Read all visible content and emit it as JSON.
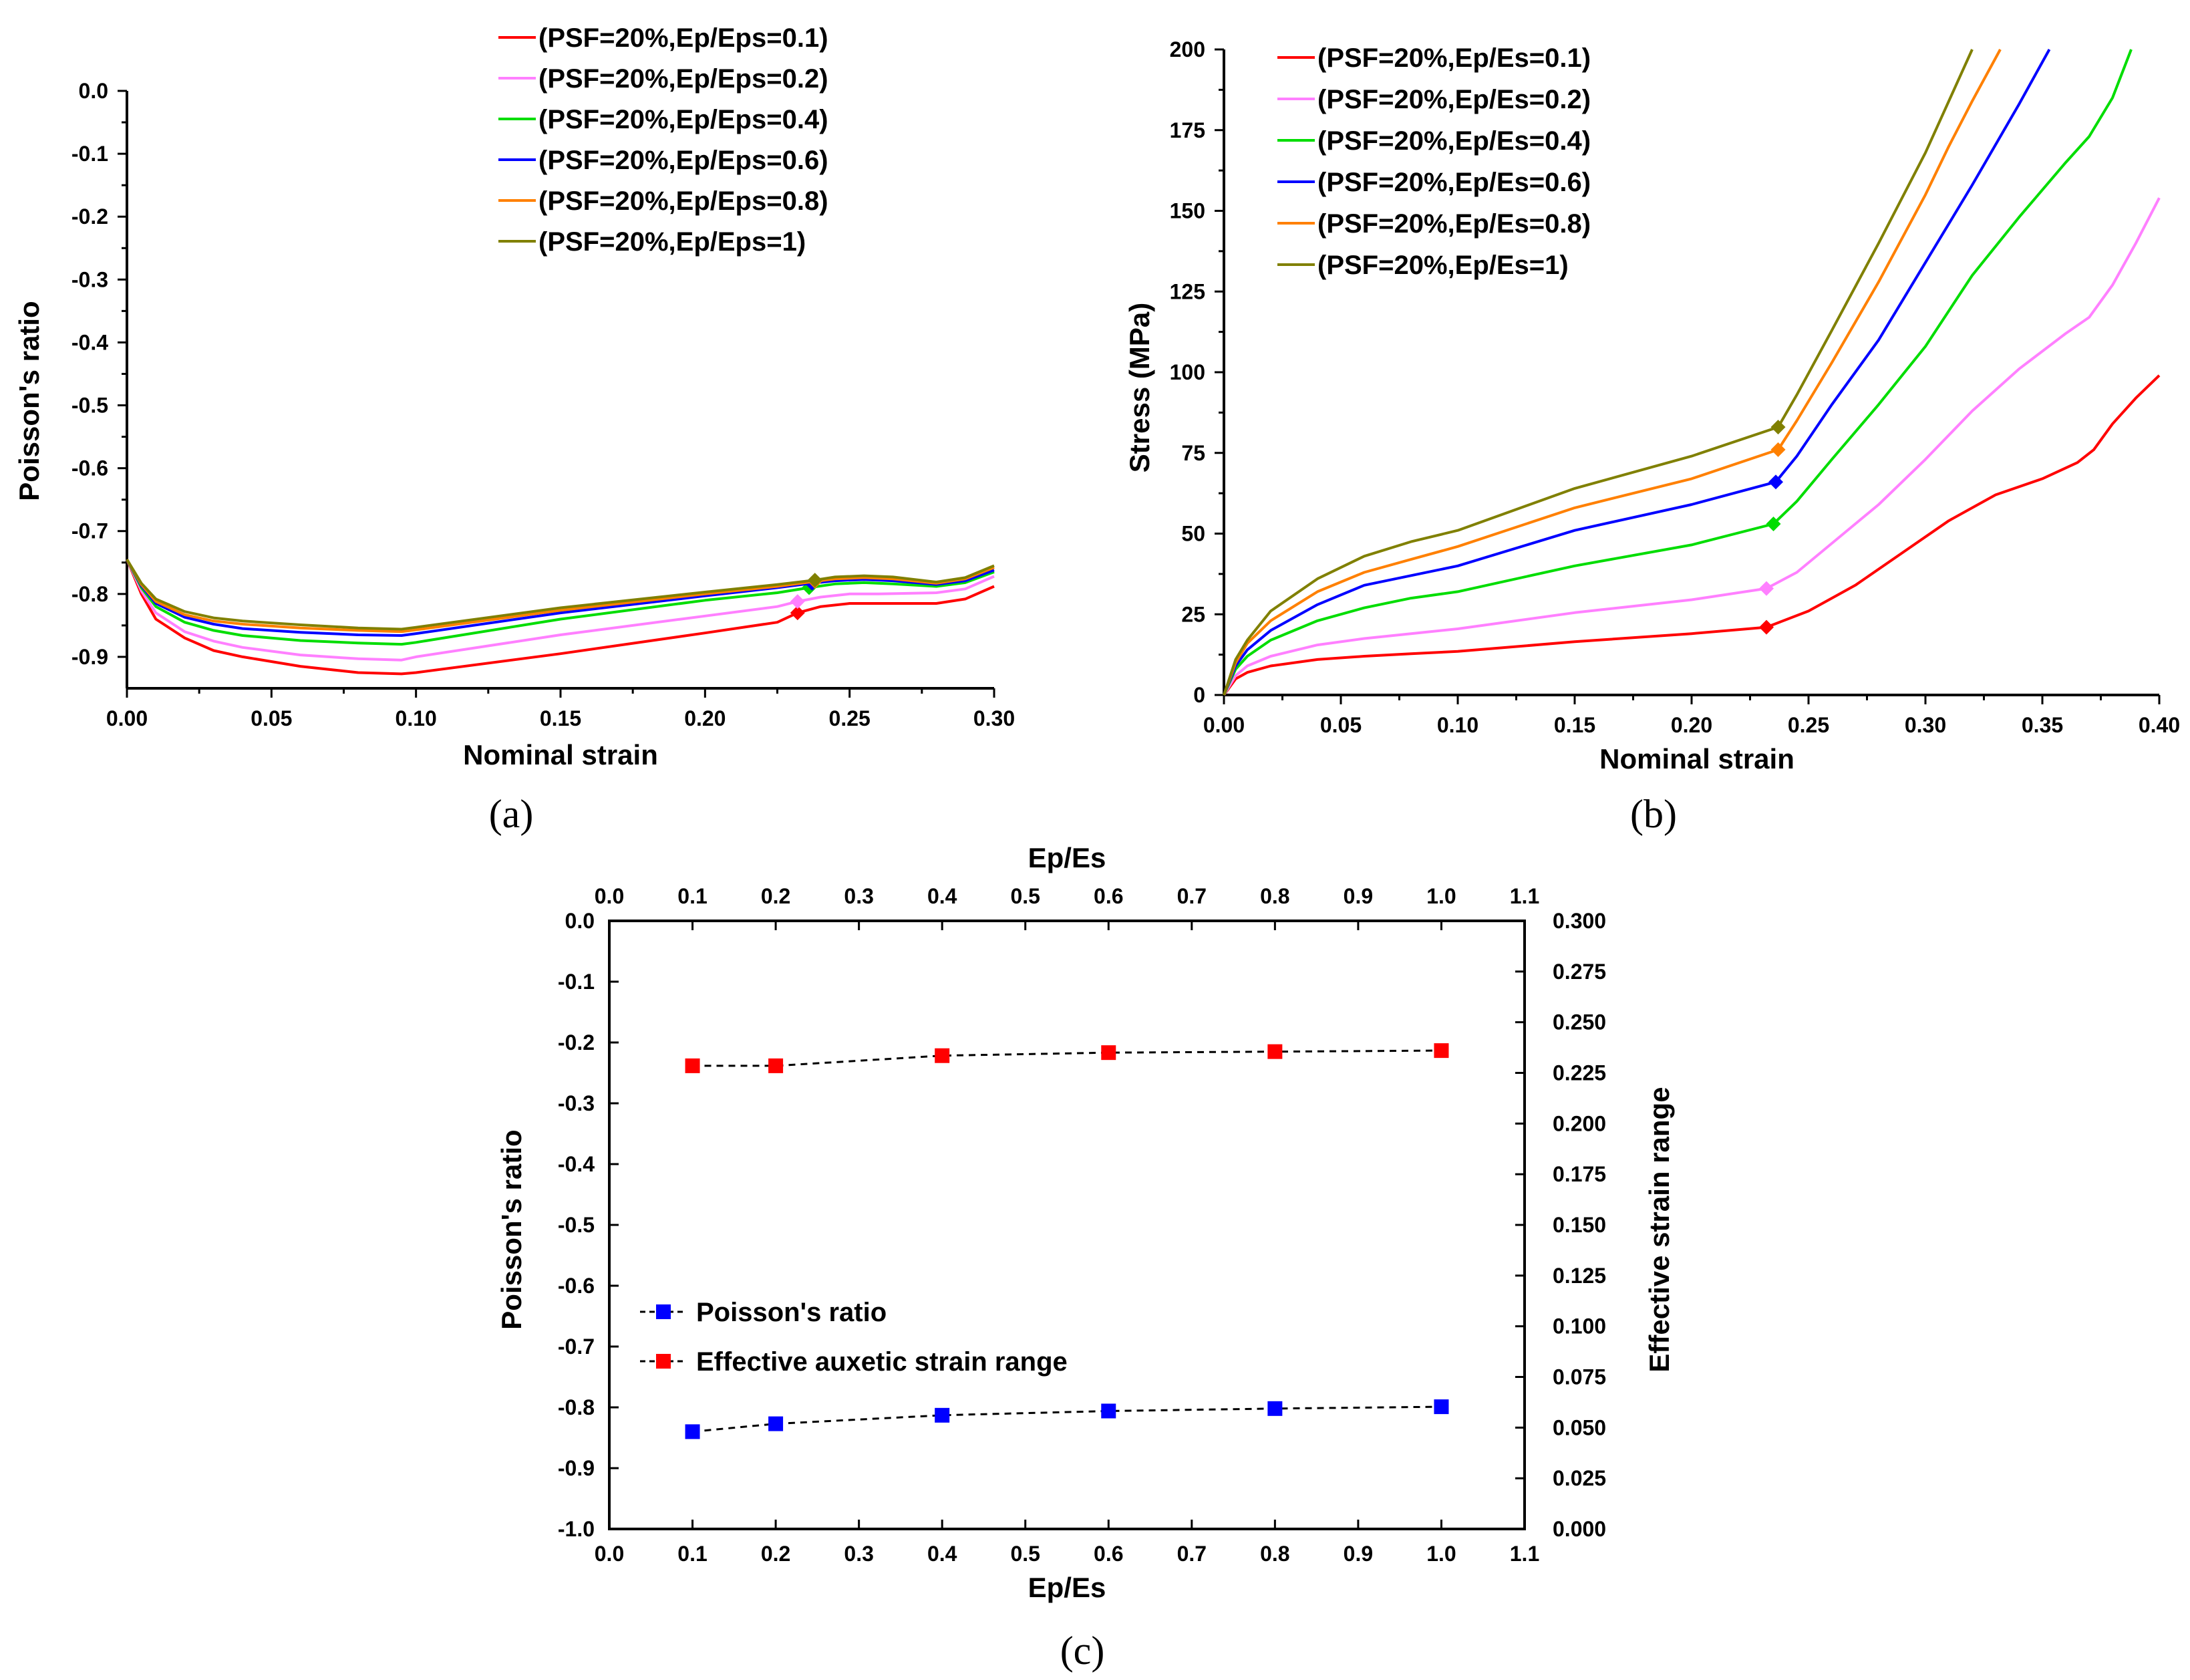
{
  "colors": [
    "#ff0000",
    "#ff80ff",
    "#00dd00",
    "#0000ff",
    "#ff8000",
    "#808000"
  ],
  "chart_data": [
    {
      "panel": "(a)",
      "type": "line",
      "xlabel": "Nominal strain",
      "ylabel": "Poisson's ratio",
      "xlim": [
        0.0,
        0.3
      ],
      "ylim": [
        -0.95,
        0.0
      ],
      "xticks": [
        "0.00",
        "0.05",
        "0.10",
        "0.15",
        "0.20",
        "0.25",
        "0.30"
      ],
      "yticks": [
        "0.0",
        "-0.1",
        "-0.2",
        "-0.3",
        "-0.4",
        "-0.5",
        "-0.6",
        "-0.7",
        "-0.8",
        "-0.9"
      ],
      "legend": "top-right",
      "series": [
        {
          "name": "(PSF=20%,Ep/Eps=0.1)",
          "x": [
            0,
            0.005,
            0.01,
            0.02,
            0.03,
            0.04,
            0.06,
            0.08,
            0.095,
            0.1,
            0.15,
            0.2,
            0.225,
            0.232,
            0.24,
            0.25,
            0.26,
            0.28,
            0.29,
            0.3
          ],
          "y": [
            -0.745,
            -0.8,
            -0.84,
            -0.87,
            -0.89,
            -0.9,
            -0.915,
            -0.925,
            -0.927,
            -0.925,
            -0.895,
            -0.862,
            -0.845,
            -0.83,
            -0.82,
            -0.815,
            -0.815,
            -0.815,
            -0.808,
            -0.788
          ],
          "marker": [
            0.232,
            -0.83
          ]
        },
        {
          "name": "(PSF=20%,Ep/Eps=0.2)",
          "x": [
            0,
            0.005,
            0.01,
            0.02,
            0.03,
            0.04,
            0.06,
            0.08,
            0.095,
            0.1,
            0.15,
            0.2,
            0.225,
            0.232,
            0.24,
            0.25,
            0.26,
            0.28,
            0.29,
            0.3
          ],
          "y": [
            -0.745,
            -0.795,
            -0.83,
            -0.86,
            -0.875,
            -0.885,
            -0.897,
            -0.903,
            -0.905,
            -0.9,
            -0.865,
            -0.835,
            -0.82,
            -0.812,
            -0.805,
            -0.8,
            -0.8,
            -0.798,
            -0.792,
            -0.772
          ],
          "marker": [
            0.232,
            -0.812
          ]
        },
        {
          "name": "(PSF=20%,Ep/Eps=0.4)",
          "x": [
            0,
            0.005,
            0.01,
            0.02,
            0.03,
            0.04,
            0.06,
            0.08,
            0.095,
            0.1,
            0.15,
            0.2,
            0.225,
            0.236,
            0.245,
            0.255,
            0.265,
            0.28,
            0.29,
            0.3
          ],
          "y": [
            -0.745,
            -0.79,
            -0.82,
            -0.845,
            -0.858,
            -0.866,
            -0.874,
            -0.878,
            -0.88,
            -0.877,
            -0.84,
            -0.81,
            -0.798,
            -0.79,
            -0.784,
            -0.782,
            -0.784,
            -0.788,
            -0.782,
            -0.765
          ],
          "marker": [
            0.236,
            -0.79
          ]
        },
        {
          "name": "(PSF=20%,Ep/Eps=0.6)",
          "x": [
            0,
            0.005,
            0.01,
            0.02,
            0.03,
            0.04,
            0.06,
            0.08,
            0.095,
            0.1,
            0.15,
            0.2,
            0.225,
            0.237,
            0.245,
            0.255,
            0.265,
            0.28,
            0.29,
            0.3
          ],
          "y": [
            -0.745,
            -0.787,
            -0.815,
            -0.837,
            -0.848,
            -0.855,
            -0.861,
            -0.865,
            -0.866,
            -0.863,
            -0.83,
            -0.803,
            -0.79,
            -0.783,
            -0.779,
            -0.777,
            -0.779,
            -0.785,
            -0.779,
            -0.762
          ],
          "marker": [
            0.237,
            -0.783
          ]
        },
        {
          "name": "(PSF=20%,Ep/Eps=0.8)",
          "x": [
            0,
            0.005,
            0.01,
            0.02,
            0.03,
            0.04,
            0.06,
            0.08,
            0.095,
            0.1,
            0.15,
            0.2,
            0.225,
            0.238,
            0.245,
            0.255,
            0.265,
            0.28,
            0.29,
            0.3
          ],
          "y": [
            -0.745,
            -0.785,
            -0.812,
            -0.833,
            -0.843,
            -0.848,
            -0.854,
            -0.858,
            -0.86,
            -0.857,
            -0.826,
            -0.8,
            -0.788,
            -0.78,
            -0.776,
            -0.774,
            -0.776,
            -0.783,
            -0.776,
            -0.758
          ],
          "marker": [
            0.238,
            -0.78
          ]
        },
        {
          "name": "(PSF=20%,Ep/Eps=1)",
          "x": [
            0,
            0.005,
            0.01,
            0.02,
            0.03,
            0.04,
            0.06,
            0.08,
            0.095,
            0.1,
            0.15,
            0.2,
            0.225,
            0.238,
            0.245,
            0.255,
            0.265,
            0.28,
            0.29,
            0.3
          ],
          "y": [
            -0.745,
            -0.783,
            -0.808,
            -0.828,
            -0.838,
            -0.843,
            -0.849,
            -0.854,
            -0.856,
            -0.853,
            -0.822,
            -0.797,
            -0.785,
            -0.778,
            -0.773,
            -0.771,
            -0.773,
            -0.781,
            -0.774,
            -0.755
          ],
          "marker": [
            0.238,
            -0.778
          ]
        }
      ]
    },
    {
      "panel": "(b)",
      "type": "line",
      "xlabel": "Nominal strain",
      "ylabel": "Stress (MPa)",
      "xlim": [
        0.0,
        0.4
      ],
      "ylim": [
        0,
        200
      ],
      "xticks": [
        "0.00",
        "0.05",
        "0.10",
        "0.15",
        "0.20",
        "0.25",
        "0.30",
        "0.35",
        "0.40"
      ],
      "yticks": [
        "0",
        "25",
        "50",
        "75",
        "100",
        "125",
        "150",
        "175",
        "200"
      ],
      "legend": "top-left",
      "series": [
        {
          "name": "(PSF=20%,Ep/Es=0.1)",
          "x": [
            0,
            0.005,
            0.01,
            0.02,
            0.04,
            0.06,
            0.08,
            0.1,
            0.15,
            0.2,
            0.232,
            0.25,
            0.27,
            0.29,
            0.31,
            0.33,
            0.35,
            0.365,
            0.372,
            0.38,
            0.39,
            0.4
          ],
          "y": [
            0,
            5,
            7,
            9,
            11,
            12,
            12.8,
            13.5,
            16.5,
            19,
            21,
            26,
            34,
            44,
            54,
            62,
            67,
            72,
            76,
            84,
            92,
            99
          ],
          "marker": [
            0.232,
            21
          ]
        },
        {
          "name": "(PSF=20%,Ep/Es=0.2)",
          "x": [
            0,
            0.005,
            0.01,
            0.02,
            0.04,
            0.06,
            0.08,
            0.1,
            0.15,
            0.2,
            0.232,
            0.245,
            0.26,
            0.28,
            0.3,
            0.32,
            0.34,
            0.36,
            0.37,
            0.38,
            0.39,
            0.4
          ],
          "y": [
            0,
            6,
            9,
            12,
            15.5,
            17.5,
            19,
            20.5,
            25.5,
            29.5,
            33,
            38,
            47,
            59,
            73,
            88,
            101,
            112,
            117,
            127,
            140,
            154
          ],
          "marker": [
            0.232,
            33
          ]
        },
        {
          "name": "(PSF=20%,Ep/Es=0.4)",
          "x": [
            0,
            0.005,
            0.01,
            0.02,
            0.04,
            0.06,
            0.08,
            0.1,
            0.15,
            0.2,
            0.235,
            0.245,
            0.26,
            0.28,
            0.3,
            0.32,
            0.34,
            0.36,
            0.37,
            0.38,
            0.388
          ],
          "y": [
            0,
            8,
            12,
            17,
            23,
            27,
            30,
            32,
            40,
            46.5,
            53,
            60,
            73,
            90,
            108,
            130,
            148,
            165,
            173,
            185,
            200
          ],
          "marker": [
            0.235,
            53
          ]
        },
        {
          "name": "(PSF=20%,Ep/Es=0.6)",
          "x": [
            0,
            0.005,
            0.01,
            0.02,
            0.04,
            0.06,
            0.08,
            0.1,
            0.15,
            0.2,
            0.236,
            0.245,
            0.26,
            0.28,
            0.3,
            0.32,
            0.34,
            0.353
          ],
          "y": [
            0,
            9,
            14,
            20,
            28,
            34,
            37,
            40,
            51,
            59,
            66,
            74,
            90,
            110,
            134,
            158,
            183,
            200
          ],
          "marker": [
            0.236,
            66
          ]
        },
        {
          "name": "(PSF=20%,Ep/Es=0.8)",
          "x": [
            0,
            0.005,
            0.01,
            0.02,
            0.04,
            0.06,
            0.08,
            0.1,
            0.15,
            0.2,
            0.237,
            0.245,
            0.26,
            0.28,
            0.3,
            0.31,
            0.32,
            0.332
          ],
          "y": [
            0,
            10,
            16,
            23,
            32,
            38,
            42,
            46,
            58,
            67,
            76,
            85,
            103,
            128,
            155,
            170,
            184,
            200
          ],
          "marker": [
            0.237,
            76
          ]
        },
        {
          "name": "(PSF=20%,Ep/Es=1)",
          "x": [
            0,
            0.005,
            0.01,
            0.02,
            0.04,
            0.06,
            0.08,
            0.1,
            0.15,
            0.2,
            0.237,
            0.245,
            0.26,
            0.28,
            0.3,
            0.31,
            0.32
          ],
          "y": [
            0,
            11,
            17,
            26,
            36,
            43,
            47.5,
            51,
            64,
            74,
            83,
            93,
            113,
            140,
            168,
            184,
            200
          ],
          "marker": [
            0.237,
            83
          ]
        }
      ]
    },
    {
      "panel": "(c)",
      "type": "scatter",
      "xlabel": "Ep/Es",
      "top_xlabel": "Ep/Es",
      "ylabel": "Poisson's ratio",
      "y2label": "Effective strain range",
      "xlim": [
        0.0,
        1.1
      ],
      "ylim": [
        -1.0,
        0.0
      ],
      "y2lim": [
        0.0,
        0.3
      ],
      "xticks": [
        "0.0",
        "0.1",
        "0.2",
        "0.3",
        "0.4",
        "0.5",
        "0.6",
        "0.7",
        "0.8",
        "0.9",
        "1.0",
        "1.1"
      ],
      "yticks": [
        "0.0",
        "-0.1",
        "-0.2",
        "-0.3",
        "-0.4",
        "-0.5",
        "-0.6",
        "-0.7",
        "-0.8",
        "-0.9",
        "-1.0"
      ],
      "y2ticks": [
        "0.000",
        "0.025",
        "0.050",
        "0.075",
        "0.100",
        "0.125",
        "0.150",
        "0.175",
        "0.200",
        "0.225",
        "0.250",
        "0.275",
        "0.300"
      ],
      "legend": "lower-left",
      "series": [
        {
          "name": "Poisson's ratio",
          "axis": "left",
          "color": "#0000ff",
          "x": [
            0.1,
            0.2,
            0.4,
            0.6,
            0.8,
            1.0
          ],
          "y": [
            -0.84,
            -0.827,
            -0.813,
            -0.806,
            -0.802,
            -0.799
          ]
        },
        {
          "name": "Effective auxetic strain range",
          "axis": "right",
          "color": "#ff0000",
          "x": [
            0.1,
            0.2,
            0.4,
            0.6,
            0.8,
            1.0
          ],
          "y": [
            0.2285,
            0.2285,
            0.2335,
            0.235,
            0.2355,
            0.236
          ]
        }
      ]
    }
  ]
}
